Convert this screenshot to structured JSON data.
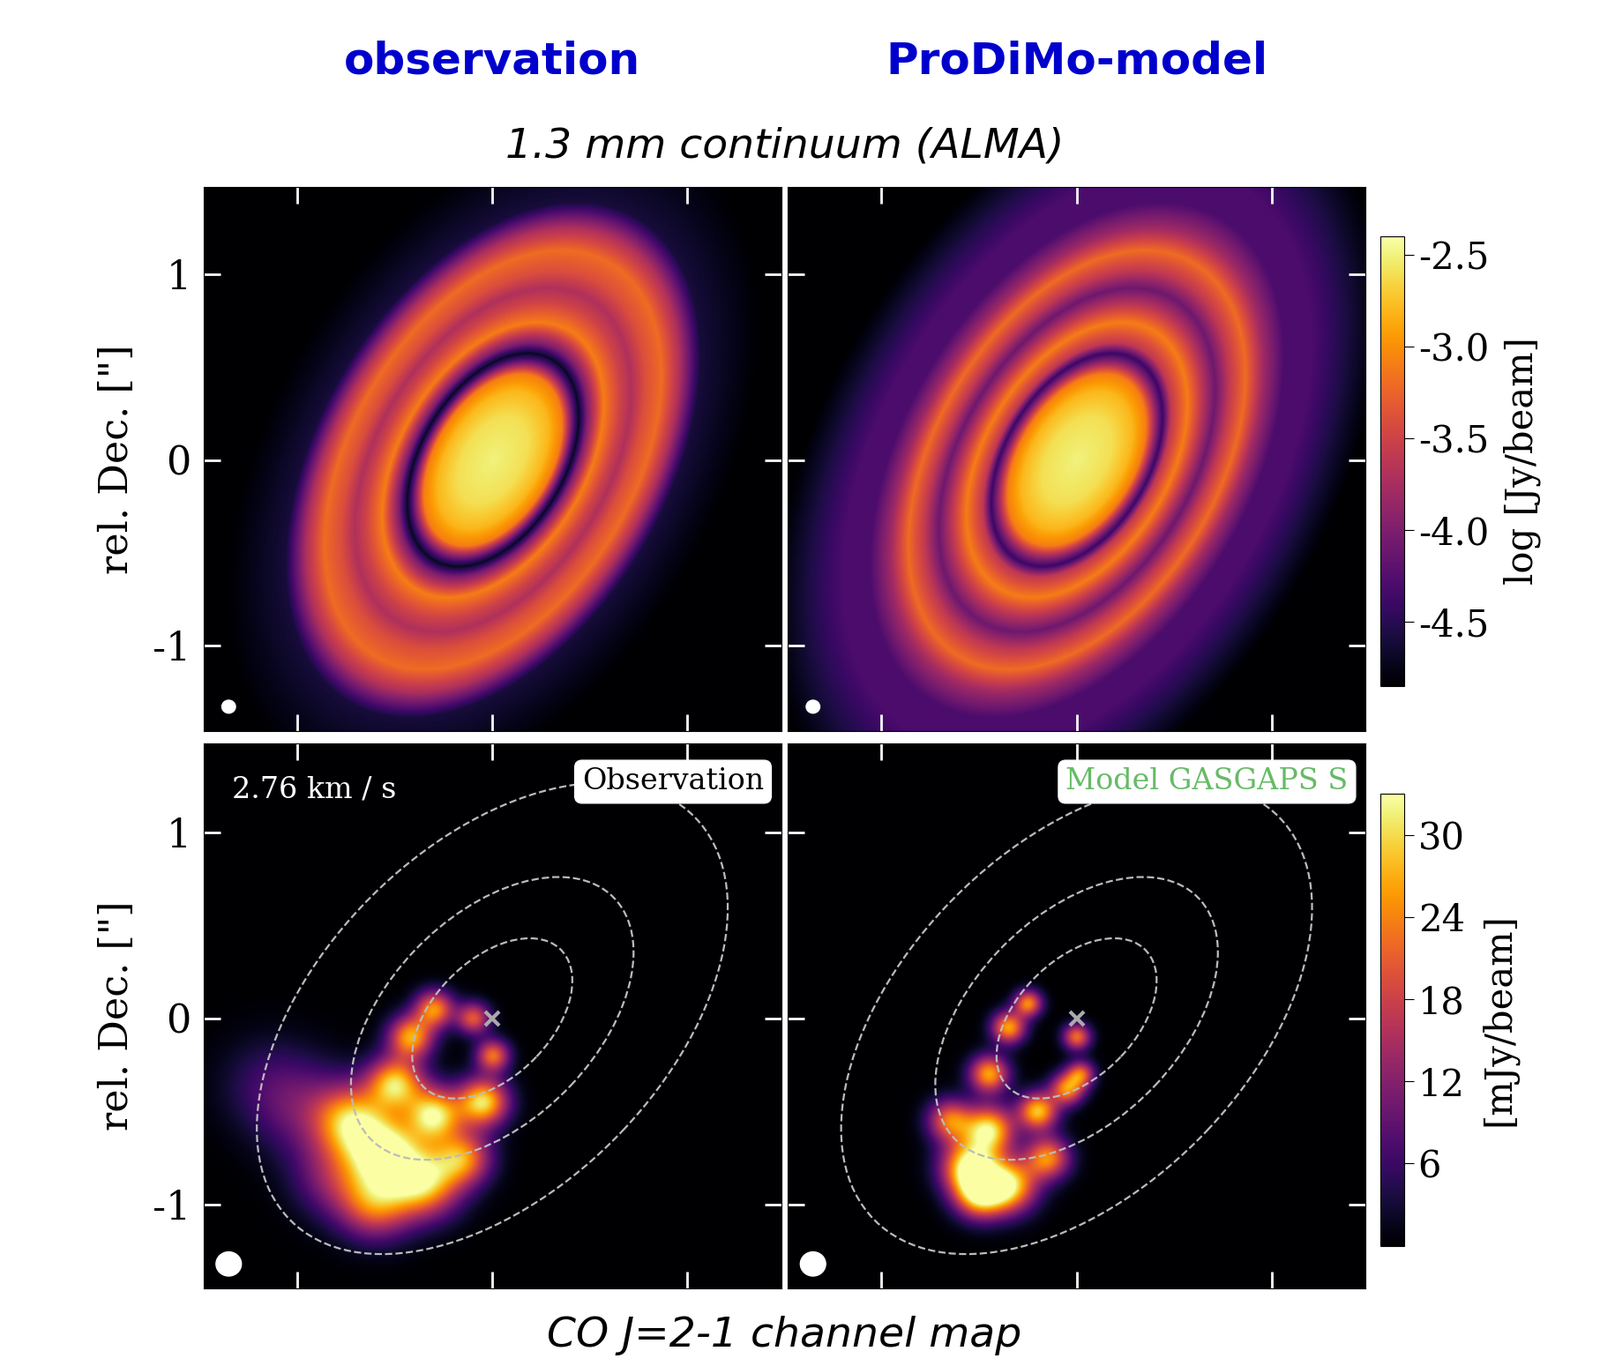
{
  "chart_data": [
    {
      "type": "image",
      "title": "1.3 mm continuum (ALMA)",
      "color": "inferno",
      "xlim": [
        -1.48,
        1.48
      ],
      "ylim": [
        -1.46,
        1.47
      ],
      "xticks": [
        -1,
        0,
        1
      ],
      "yticks": [
        -1,
        0,
        1
      ],
      "color_bar": {
        "label": "log [Jy/beam]",
        "range": [
          -4.85,
          -2.4
        ],
        "ticks": [
          -2.5,
          -3.0,
          -3.5,
          -4.0,
          -4.5
        ]
      },
      "panels": [
        {
          "title": "observation",
          "ylabel": "rel. Dec. [\"]",
          "tick_labels": "y",
          "profile": {
            "radius": [
              0,
              0.25,
              0.4,
              0.5,
              0.58,
              0.62,
              0.68,
              0.8,
              0.92,
              1.0,
              1.1,
              1.22,
              1.35,
              1.5,
              2.2
            ],
            "values": [
              -2.5,
              -2.6,
              -2.8,
              -3.1,
              -4.2,
              -4.7,
              -4.0,
              -3.1,
              -3.5,
              -3.7,
              -3.4,
              -3.2,
              -3.7,
              -4.6,
              -5.0
            ]
          }
        },
        {
          "title": "ProDiMo-model",
          "tick_labels": false,
          "profile": {
            "radius": [
              0,
              0.25,
              0.4,
              0.5,
              0.58,
              0.62,
              0.68,
              0.8,
              0.92,
              1.0,
              1.1,
              1.22,
              1.35,
              1.5,
              1.7,
              2.2
            ],
            "values": [
              -2.5,
              -2.6,
              -2.8,
              -3.1,
              -4.0,
              -4.4,
              -3.6,
              -3.1,
              -3.7,
              -4.1,
              -3.6,
              -3.2,
              -3.8,
              -4.3,
              -4.3,
              -4.85
            ]
          }
        }
      ]
    },
    {
      "type": "image",
      "title": "CO J=2-1 channel map",
      "color": "inferno",
      "xlim": [
        -1.48,
        1.48
      ],
      "ylim": [
        -1.45,
        1.48
      ],
      "xticks": [
        -1,
        0,
        1
      ],
      "yticks": [
        -1,
        0,
        1
      ],
      "color_bar": {
        "label": "[mJy/beam]",
        "range": [
          0,
          33
        ],
        "ticks": [
          6,
          12,
          18,
          24,
          30
        ]
      },
      "ellipses": [
        0.51,
        0.9,
        1.5
      ],
      "star": [
        0,
        0
      ],
      "panels": [
        {
          "label": "Observation",
          "annotation": "2.76 km / s",
          "ylabel": "rel. Dec. [\"]",
          "tick_labels": "y",
          "components": {
            "x": [
              -0.42,
              -0.3,
              -0.1,
              0.0,
              -0.05,
              -0.3,
              -0.5,
              -0.55,
              -0.35,
              -0.72,
              -0.95,
              -1.15,
              -0.15,
              -0.6,
              -0.8
            ],
            "y": [
              -0.1,
              0.05,
              0.0,
              -0.2,
              -0.45,
              -0.52,
              -0.35,
              -0.72,
              -0.88,
              -0.55,
              -0.5,
              -0.35,
              -0.75,
              -1.0,
              -0.85
            ],
            "width": [
              0.08,
              0.07,
              0.06,
              0.06,
              0.09,
              0.1,
              0.1,
              0.13,
              0.13,
              0.13,
              0.18,
              0.18,
              0.1,
              0.13,
              0.15
            ],
            "peak": [
              26,
              24,
              20,
              22,
              30,
              30,
              28,
              30,
              28,
              24,
              8,
              5,
              22,
              20,
              12
            ]
          }
        },
        {
          "label": "Model GASGAPS S",
          "tick_labels": false,
          "components": {
            "x": [
              -0.35,
              -0.25,
              -0.45,
              0.0,
              -0.05,
              -0.2,
              -0.45,
              -0.55,
              -0.35,
              -0.65,
              -0.5,
              -0.15,
              0.02
            ],
            "y": [
              -0.05,
              0.08,
              -0.3,
              -0.1,
              -0.38,
              -0.5,
              -0.6,
              -0.8,
              -0.9,
              -0.55,
              -0.95,
              -0.75,
              -0.3
            ],
            "width": [
              0.06,
              0.05,
              0.07,
              0.05,
              0.06,
              0.07,
              0.09,
              0.1,
              0.1,
              0.08,
              0.09,
              0.08,
              0.05
            ],
            "peak": [
              26,
              24,
              26,
              22,
              24,
              28,
              30,
              32,
              30,
              22,
              26,
              24,
              20
            ]
          }
        }
      ]
    }
  ]
}
